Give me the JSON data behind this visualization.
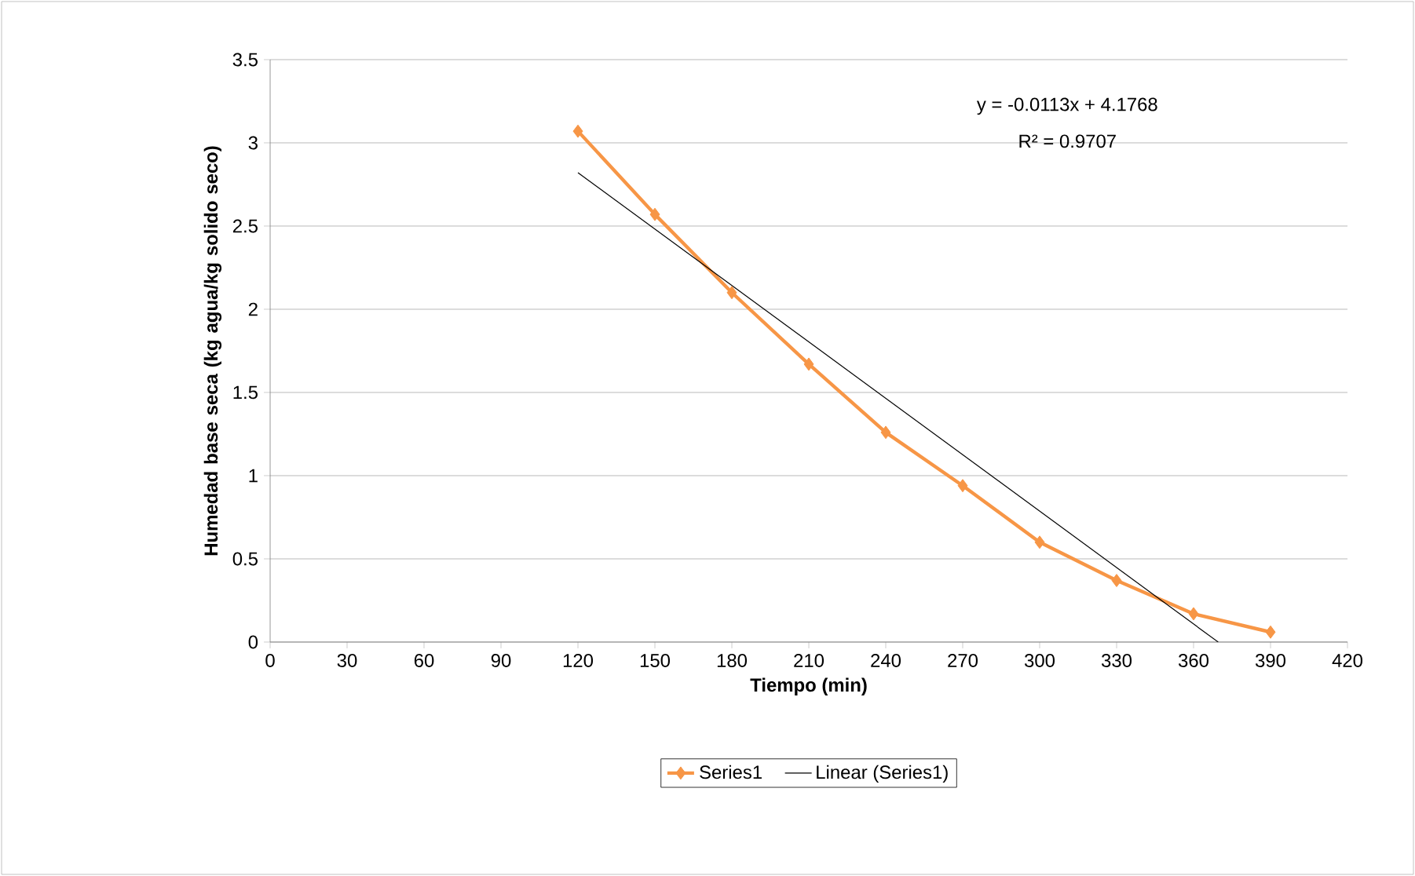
{
  "chart_data": {
    "type": "line",
    "xlabel": "Tiempo (min)",
    "ylabel": "Humedad base seca (kg agua/kg solido seco)",
    "x": [
      120,
      150,
      180,
      210,
      240,
      270,
      300,
      330,
      360,
      390
    ],
    "series": [
      {
        "name": "Series1",
        "color": "#f79646",
        "values": [
          3.07,
          2.57,
          2.1,
          1.67,
          1.26,
          0.94,
          0.6,
          0.37,
          0.17,
          0.06
        ]
      },
      {
        "name": "Linear (Series1)",
        "type": "line",
        "marker": "none",
        "color": "#000000",
        "x": [
          120,
          369.6
        ],
        "values": [
          2.8208,
          0
        ]
      }
    ],
    "annotations": [
      "y = -0.0113x + 4.1768",
      "R² = 0.9707"
    ],
    "xlim": [
      0,
      420
    ],
    "xticks": [
      0,
      30,
      60,
      90,
      120,
      150,
      180,
      210,
      240,
      270,
      300,
      330,
      360,
      390,
      420
    ],
    "ylim": [
      0,
      3.5
    ],
    "yticks": [
      0,
      0.5,
      1,
      1.5,
      2,
      2.5,
      3,
      3.5
    ],
    "grid": "y",
    "legend": "bottom",
    "marker": "diamond",
    "line_style": "solid"
  }
}
